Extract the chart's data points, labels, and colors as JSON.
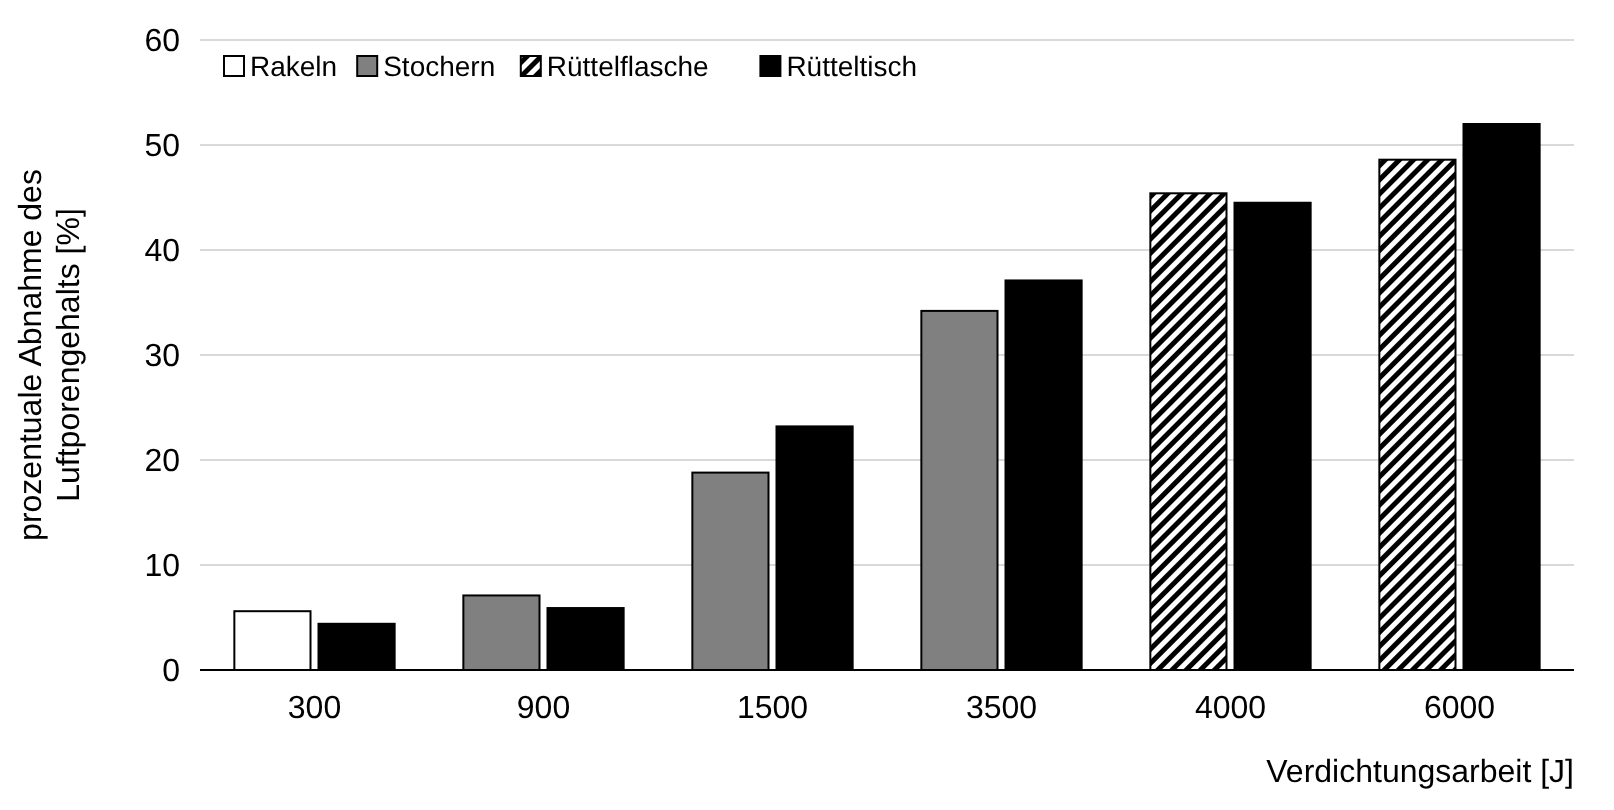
{
  "chart_data": {
    "type": "bar",
    "xlabel": "Verdichtungsarbeit [J]",
    "ylabel": "prozentuale Abnahme des\nLuftporengehalts [%]",
    "categories": [
      "300",
      "900",
      "1500",
      "3500",
      "4000",
      "6000"
    ],
    "series": [
      {
        "name": "Rakeln",
        "color": "#ffffff",
        "values": [
          5.6,
          null,
          null,
          null,
          null,
          null
        ]
      },
      {
        "name": "Stochern",
        "color": "#808080",
        "values": [
          null,
          7.1,
          18.8,
          34.2,
          null,
          null
        ]
      },
      {
        "name": "Rüttelflasche",
        "color": "#000000",
        "values": [
          null,
          null,
          null,
          null,
          45.4,
          48.6
        ]
      },
      {
        "name": "Rütteltisch",
        "color": "#000000",
        "values": [
          4.4,
          5.9,
          23.2,
          37.1,
          44.5,
          52.0
        ]
      }
    ],
    "ylim": [
      0,
      60
    ],
    "yticks": [
      0,
      10,
      20,
      30,
      40,
      50,
      60
    ],
    "grid": "y",
    "legend": "top left"
  }
}
